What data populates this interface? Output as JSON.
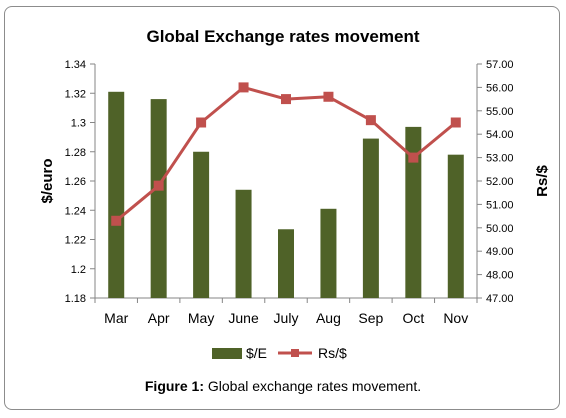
{
  "caption": {
    "label": "Figure 1:",
    "text": "Global exchange rates movement."
  },
  "chart_data": {
    "type": "bar",
    "title": "Global Exchange rates movement",
    "categories": [
      "Mar",
      "Apr",
      "May",
      "June",
      "July",
      "Aug",
      "Sep",
      "Oct",
      "Nov"
    ],
    "series": [
      {
        "name": "$/E",
        "type": "bar",
        "axis": "left",
        "color": "#4f6228",
        "values": [
          1.321,
          1.316,
          1.28,
          1.254,
          1.227,
          1.241,
          1.289,
          1.297,
          1.278
        ]
      },
      {
        "name": "Rs/$",
        "type": "line",
        "axis": "right",
        "color": "#c0504d",
        "values": [
          50.3,
          51.8,
          54.5,
          56.0,
          55.5,
          55.6,
          54.6,
          53.0,
          54.5
        ]
      }
    ],
    "ylabel_left": "$/euro",
    "ylabel_right": "Rs/$",
    "ylim_left": [
      1.18,
      1.34
    ],
    "yticks_left": [
      "1.18",
      "1.2",
      "1.22",
      "1.24",
      "1.26",
      "1.28",
      "1.3",
      "1.32",
      "1.34"
    ],
    "ylim_right": [
      47.0,
      57.0
    ],
    "yticks_right": [
      "47.00",
      "48.00",
      "49.00",
      "50.00",
      "51.00",
      "52.00",
      "53.00",
      "54.00",
      "55.00",
      "56.00",
      "57.00"
    ],
    "grid": false,
    "legend": "bottom"
  }
}
